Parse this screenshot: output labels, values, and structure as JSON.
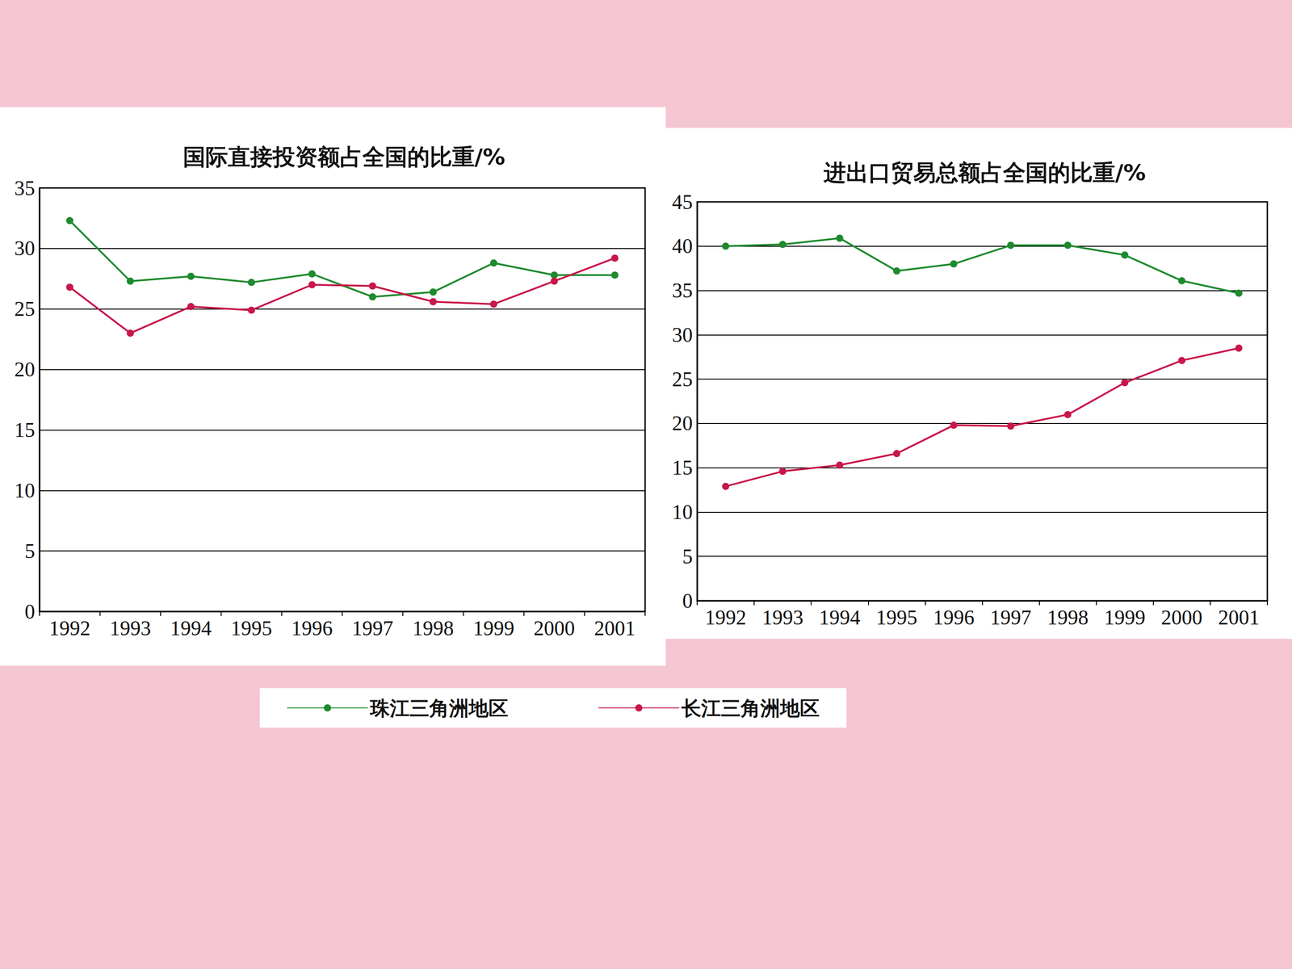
{
  "chart_data": [
    {
      "type": "line",
      "title": "国际直接投资额占全国的比重/%",
      "categories": [
        "1992",
        "1993",
        "1994",
        "1995",
        "1996",
        "1997",
        "1998",
        "1999",
        "2000",
        "2001"
      ],
      "series": [
        {
          "name": "珠江三角洲地区",
          "color": "#1e8a2e",
          "marker": "circle",
          "values": [
            32.3,
            27.3,
            27.7,
            27.2,
            27.9,
            26.0,
            26.4,
            28.8,
            27.8,
            27.8
          ]
        },
        {
          "name": "长江三角洲地区",
          "color": "#c8174a",
          "marker": "circle",
          "values": [
            26.8,
            23.0,
            25.2,
            24.9,
            27.0,
            26.9,
            25.6,
            25.4,
            27.3,
            29.2
          ]
        }
      ],
      "ylim": [
        0,
        35
      ],
      "yticks": [
        0,
        5,
        10,
        15,
        20,
        25,
        30,
        35
      ],
      "grid": true,
      "legend": "bottom"
    },
    {
      "type": "line",
      "title": "进出口贸易总额占全国的比重/%",
      "categories": [
        "1992",
        "1993",
        "1994",
        "1995",
        "1996",
        "1997",
        "1998",
        "1999",
        "2000",
        "2001"
      ],
      "series": [
        {
          "name": "珠江三角洲地区",
          "color": "#1e8a2e",
          "marker": "circle",
          "values": [
            40.0,
            40.2,
            40.9,
            37.2,
            38.0,
            40.1,
            40.1,
            39.0,
            36.1,
            34.7
          ]
        },
        {
          "name": "长江三角洲地区",
          "color": "#c8174a",
          "marker": "circle",
          "values": [
            12.9,
            14.6,
            15.3,
            16.6,
            19.8,
            19.7,
            21.0,
            24.6,
            27.1,
            28.5
          ]
        }
      ],
      "ylim": [
        0,
        45
      ],
      "yticks": [
        0,
        5,
        10,
        15,
        20,
        25,
        30,
        35,
        40,
        45
      ],
      "grid": true,
      "legend": "bottom"
    }
  ]
}
